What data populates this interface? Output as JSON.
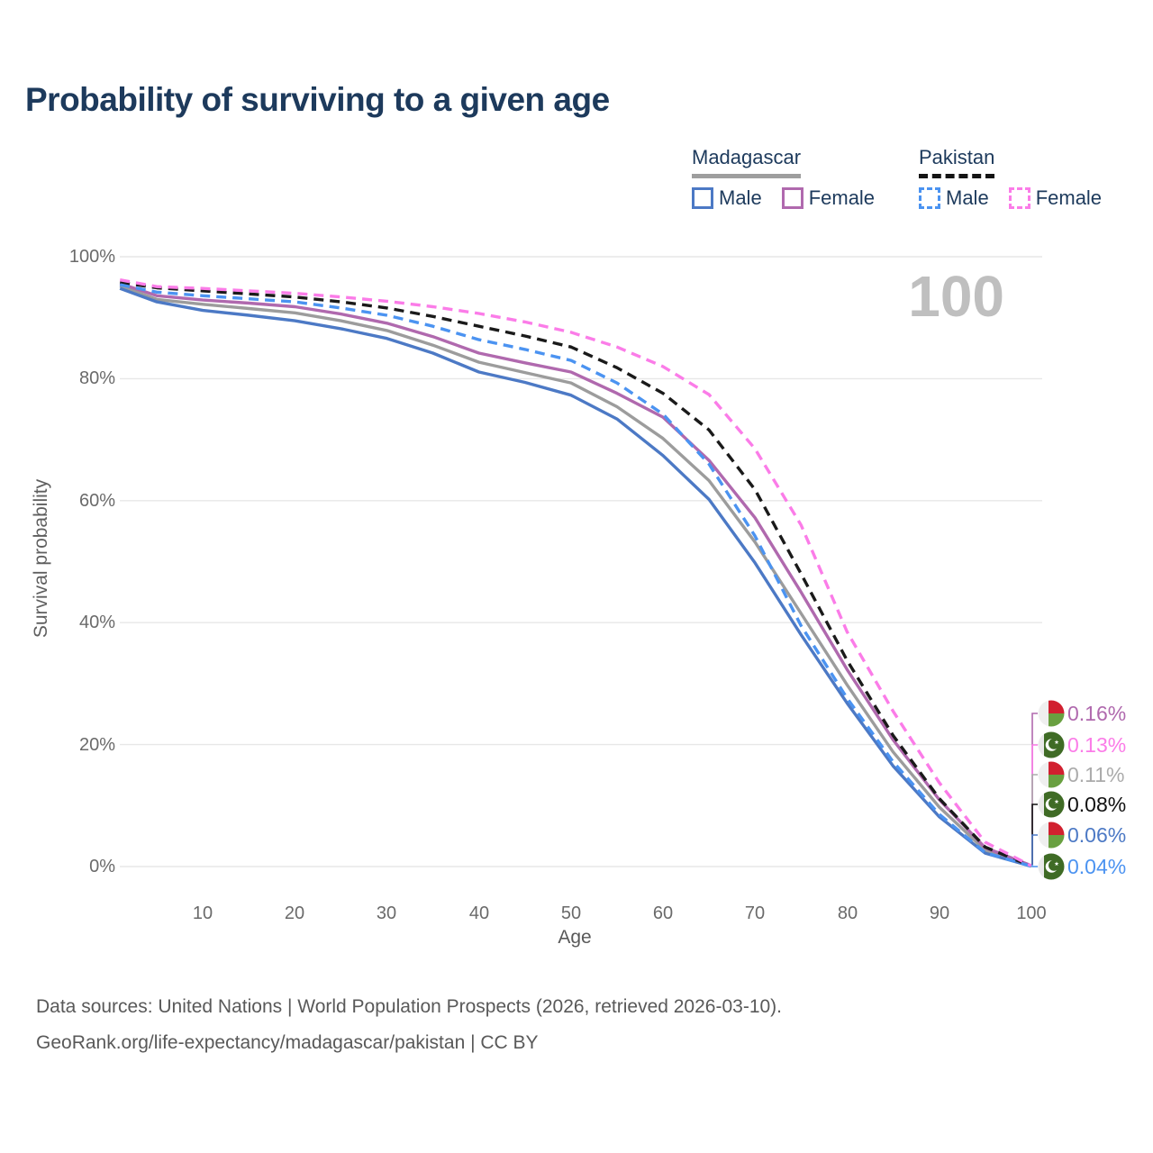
{
  "title": "Probability of surviving to a given age",
  "legend": {
    "groups": [
      {
        "country": "Madagascar",
        "line_style": "solid",
        "items": [
          {
            "label": "Male",
            "color": "#4c79c5"
          },
          {
            "label": "Female",
            "color": "#b069ae"
          }
        ]
      },
      {
        "country": "Pakistan",
        "line_style": "dashed",
        "items": [
          {
            "label": "Male",
            "color": "#4b93f1"
          },
          {
            "label": "Female",
            "color": "#fb7ce8"
          }
        ]
      }
    ]
  },
  "chart_data": {
    "type": "line",
    "title": "Probability of surviving to a given age",
    "xlabel": "Age",
    "ylabel": "Survival probability",
    "xlim": [
      0,
      100
    ],
    "ylim": [
      0,
      100
    ],
    "grid": "horizontal-only",
    "legend_position": "top-right",
    "age_counter": "100",
    "xticks": [
      "10",
      "20",
      "30",
      "40",
      "50",
      "60",
      "70",
      "80",
      "90",
      "100"
    ],
    "yticks": [
      {
        "label": "100%",
        "value": 100
      },
      {
        "label": "80%",
        "value": 80
      },
      {
        "label": "60%",
        "value": 60
      },
      {
        "label": "40%",
        "value": 40
      },
      {
        "label": "20%",
        "value": 20
      },
      {
        "label": "0%",
        "value": 0
      }
    ],
    "x": [
      1,
      5,
      10,
      15,
      20,
      25,
      30,
      35,
      40,
      45,
      50,
      55,
      60,
      65,
      70,
      75,
      80,
      85,
      90,
      95,
      100
    ],
    "series": [
      {
        "name": "Madagascar",
        "country": "Madagascar",
        "sex": "both",
        "style": "solid",
        "color": "#9c9c9c",
        "end_value": "0.11%",
        "values": [
          95.2,
          93.0,
          92.2,
          91.5,
          90.8,
          89.5,
          87.9,
          85.5,
          82.7,
          81.0,
          79.3,
          75.4,
          70.2,
          63.3,
          53.2,
          41.5,
          29.8,
          18.8,
          9.8,
          2.7,
          0.11
        ]
      },
      {
        "name": "Madagascar Female",
        "country": "Madagascar",
        "sex": "female",
        "style": "solid",
        "color": "#b069ae",
        "end_value": "0.16%",
        "values": [
          95.6,
          93.6,
          92.9,
          92.4,
          91.8,
          90.6,
          89.1,
          86.9,
          84.2,
          82.6,
          81.1,
          77.6,
          73.7,
          66.6,
          57.2,
          45.0,
          32.3,
          20.8,
          11.0,
          3.1,
          0.16
        ]
      },
      {
        "name": "Madagascar Male",
        "country": "Madagascar",
        "sex": "male",
        "style": "solid",
        "color": "#4c79c5",
        "end_value": "0.06%",
        "values": [
          94.8,
          92.6,
          91.2,
          90.4,
          89.5,
          88.2,
          86.6,
          84.2,
          81.1,
          79.4,
          77.3,
          73.4,
          67.4,
          60.2,
          49.8,
          38.0,
          26.8,
          16.5,
          8.2,
          2.2,
          0.06
        ]
      },
      {
        "name": "Pakistan",
        "country": "Pakistan",
        "sex": "both",
        "style": "dashed",
        "color": "#1a1a1a",
        "end_value": "0.08%",
        "values": [
          95.8,
          94.9,
          94.4,
          93.9,
          93.4,
          92.6,
          91.6,
          90.2,
          88.6,
          87.0,
          85.2,
          81.8,
          77.6,
          71.6,
          61.8,
          48.0,
          33.8,
          21.5,
          11.2,
          3.2,
          0.08
        ]
      },
      {
        "name": "Pakistan Male",
        "country": "Pakistan",
        "sex": "male",
        "style": "dashed",
        "color": "#4b93f1",
        "end_value": "0.04%",
        "values": [
          95.4,
          94.2,
          93.6,
          93.1,
          92.6,
          91.6,
          90.4,
          88.6,
          86.4,
          84.8,
          83.0,
          79.3,
          74.2,
          66.0,
          54.2,
          39.5,
          27.6,
          17.2,
          8.6,
          2.3,
          0.04
        ]
      },
      {
        "name": "Pakistan Female",
        "country": "Pakistan",
        "sex": "female",
        "style": "dashed",
        "color": "#fb7ce8",
        "end_value": "0.13%",
        "values": [
          96.2,
          95.1,
          94.8,
          94.4,
          94.0,
          93.4,
          92.7,
          91.8,
          90.7,
          89.3,
          87.6,
          85.2,
          82.0,
          77.4,
          68.5,
          56.0,
          38.5,
          25.5,
          13.8,
          4.0,
          0.13
        ]
      }
    ]
  },
  "end_labels": [
    {
      "flag": "madagascar",
      "series": "Madagascar Female",
      "value": "0.16%",
      "color": "#b069ae"
    },
    {
      "flag": "pakistan",
      "series": "Pakistan Female",
      "value": "0.13%",
      "color": "#fb7ce8"
    },
    {
      "flag": "madagascar",
      "series": "Madagascar",
      "value": "0.11%",
      "color": "#ababab"
    },
    {
      "flag": "pakistan",
      "series": "Pakistan",
      "value": "0.08%",
      "color": "#111111"
    },
    {
      "flag": "madagascar",
      "series": "Madagascar Male",
      "value": "0.06%",
      "color": "#4c79c5"
    },
    {
      "flag": "pakistan",
      "series": "Pakistan Male",
      "value": "0.04%",
      "color": "#4b93f1"
    }
  ],
  "footer": {
    "line1": "Data sources: United Nations | World Population Prospects (2026, retrieved 2026-03-10).",
    "line2": "GeoRank.org/life-expectancy/madagascar/pakistan | CC BY"
  }
}
